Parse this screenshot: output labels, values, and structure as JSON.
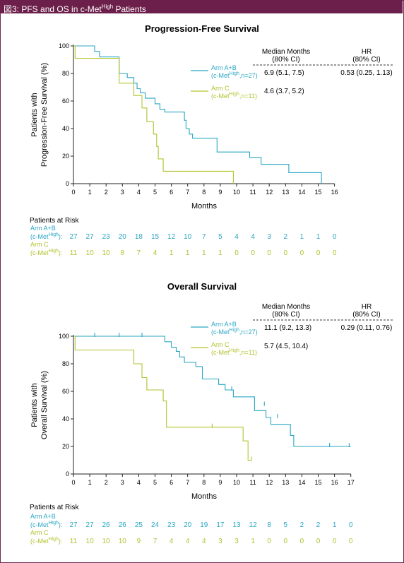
{
  "figure": {
    "label": "図3: PFS and OS in c-Met",
    "label_sup": "High",
    "label_end": " Patients"
  },
  "colors": {
    "armAB": "#2aa6c4",
    "armC": "#b3c22e",
    "banner": "#6b1f4a"
  },
  "chart_data": [
    {
      "type": "line",
      "title": "Progression-Free Survival",
      "ylabel_line1": "Patients with",
      "ylabel_line2": "Progression-Free Survival (%)",
      "xlabel": "Months",
      "xlim": [
        0,
        16
      ],
      "ylim": [
        0,
        100
      ],
      "xticks": [
        0,
        1,
        2,
        3,
        4,
        5,
        6,
        7,
        8,
        9,
        10,
        11,
        12,
        13,
        14,
        15,
        16
      ],
      "yticks": [
        0,
        20,
        40,
        60,
        80,
        100
      ],
      "table": {
        "col1_head1": "Median Months",
        "col1_head2": "(80% CI)",
        "col2_head1": "HR",
        "col2_head2": "(80% CI)",
        "rowAB_median": "6.9 (5.1, 7.5)",
        "rowC_median": "4.6 (3.7, 5.2)",
        "hr": "0.53 (0.25, 1.13)"
      },
      "series": [
        {
          "name": "Arm A+B",
          "name2": "(c-Met",
          "name2_sup": "High",
          "name2_end": ",n=27)",
          "color": "#2aa6c4",
          "steps": [
            [
              0,
              100
            ],
            [
              1.3,
              100
            ],
            [
              1.3,
              96
            ],
            [
              1.6,
              96
            ],
            [
              1.6,
              92
            ],
            [
              2.8,
              92
            ],
            [
              2.8,
              88
            ],
            [
              2.8,
              80
            ],
            [
              3.3,
              80
            ],
            [
              3.3,
              77
            ],
            [
              3.7,
              77
            ],
            [
              3.7,
              73
            ],
            [
              3.9,
              73
            ],
            [
              3.9,
              69
            ],
            [
              4.1,
              69
            ],
            [
              4.1,
              66
            ],
            [
              4.4,
              66
            ],
            [
              4.4,
              62
            ],
            [
              5.0,
              62
            ],
            [
              5.0,
              58
            ],
            [
              5.3,
              58
            ],
            [
              5.3,
              54
            ],
            [
              5.6,
              54
            ],
            [
              5.6,
              52
            ],
            [
              6.8,
              52
            ],
            [
              6.8,
              46
            ],
            [
              6.9,
              46
            ],
            [
              6.9,
              40
            ],
            [
              7.1,
              40
            ],
            [
              7.1,
              36
            ],
            [
              7.3,
              36
            ],
            [
              7.3,
              33
            ],
            [
              8.8,
              33
            ],
            [
              8.8,
              23
            ],
            [
              10.8,
              23
            ],
            [
              10.8,
              19
            ],
            [
              11.5,
              19
            ],
            [
              11.5,
              14
            ],
            [
              13.2,
              14
            ],
            [
              13.2,
              8
            ],
            [
              15.2,
              8
            ],
            [
              15.2,
              0
            ]
          ],
          "censors": []
        },
        {
          "name": "Arm C",
          "name2": "(c-Met",
          "name2_sup": "High",
          "name2_end": ",n=11)",
          "color": "#b3c22e",
          "steps": [
            [
              0,
              100
            ],
            [
              0.1,
              100
            ],
            [
              0.1,
              91
            ],
            [
              2.8,
              91
            ],
            [
              2.8,
              73
            ],
            [
              3.7,
              73
            ],
            [
              3.7,
              64
            ],
            [
              4.2,
              64
            ],
            [
              4.2,
              55
            ],
            [
              4.5,
              55
            ],
            [
              4.5,
              45
            ],
            [
              4.9,
              45
            ],
            [
              4.9,
              36
            ],
            [
              5.1,
              36
            ],
            [
              5.1,
              27
            ],
            [
              5.2,
              27
            ],
            [
              5.2,
              18
            ],
            [
              5.5,
              18
            ],
            [
              5.5,
              9
            ],
            [
              9.8,
              9
            ],
            [
              9.8,
              0
            ]
          ],
          "censors": []
        }
      ],
      "risk": {
        "heading": "Patients at Risk",
        "rows": [
          {
            "label1": "Arm A+B",
            "label2": "(c-Met",
            "label2_sup": "High",
            "label2_end": "):",
            "values": [
              "27",
              "27",
              "23",
              "20",
              "18",
              "15",
              "12",
              "10",
              "7",
              "5",
              "4",
              "4",
              "3",
              "2",
              "1",
              "1",
              "0"
            ]
          },
          {
            "label1": "Arm C",
            "label2": "(c-Met",
            "label2_sup": "High",
            "label2_end": "):",
            "values": [
              "11",
              "10",
              "10",
              "8",
              "7",
              "4",
              "1",
              "1",
              "1",
              "1",
              "0",
              "0",
              "0",
              "0",
              "0",
              "0",
              "0"
            ]
          }
        ]
      }
    },
    {
      "type": "line",
      "title": "Overall Survival",
      "ylabel_line1": "Patients with",
      "ylabel_line2": "Overall Survival (%)",
      "xlabel": "Months",
      "xlim": [
        0,
        17
      ],
      "ylim": [
        0,
        100
      ],
      "xticks": [
        0,
        1,
        2,
        3,
        4,
        5,
        6,
        7,
        8,
        9,
        10,
        11,
        12,
        13,
        14,
        15,
        16,
        17
      ],
      "yticks": [
        0,
        20,
        40,
        60,
        80,
        100
      ],
      "table": {
        "col1_head1": "Median Months",
        "col1_head2": "(80% CI)",
        "col2_head1": "HR",
        "col2_head2": "(80% CI)",
        "rowAB_median": "11.1 (9.2, 13.3)",
        "rowC_median": "5.7 (4.5, 10.4)",
        "hr": "0.29 (0.11, 0.76)"
      },
      "series": [
        {
          "name": "Arm A+B",
          "name2": "(c-Met",
          "name2_sup": "High",
          "name2_end": ",n=27)",
          "color": "#2aa6c4",
          "steps": [
            [
              0,
              100
            ],
            [
              5.6,
              100
            ],
            [
              5.6,
              96
            ],
            [
              6.0,
              96
            ],
            [
              6.0,
              92
            ],
            [
              6.3,
              92
            ],
            [
              6.3,
              89
            ],
            [
              6.5,
              89
            ],
            [
              6.5,
              85
            ],
            [
              6.8,
              85
            ],
            [
              6.8,
              81
            ],
            [
              7.5,
              81
            ],
            [
              7.5,
              78
            ],
            [
              7.9,
              78
            ],
            [
              7.9,
              69
            ],
            [
              8.9,
              69
            ],
            [
              8.9,
              65
            ],
            [
              9.3,
              65
            ],
            [
              9.3,
              61
            ],
            [
              9.8,
              61
            ],
            [
              9.8,
              56
            ],
            [
              11.1,
              56
            ],
            [
              11.1,
              46
            ],
            [
              11.8,
              46
            ],
            [
              11.8,
              41
            ],
            [
              12.1,
              41
            ],
            [
              12.1,
              36
            ],
            [
              13.3,
              36
            ],
            [
              13.3,
              28
            ],
            [
              13.5,
              28
            ],
            [
              13.5,
              20
            ],
            [
              17,
              20
            ]
          ],
          "censors": [
            [
              1.3,
              100
            ],
            [
              2.8,
              100
            ],
            [
              4.2,
              100
            ],
            [
              9.7,
              61
            ],
            [
              11.7,
              50
            ],
            [
              12.5,
              41
            ],
            [
              15.7,
              20
            ],
            [
              16.9,
              20
            ]
          ]
        },
        {
          "name": "Arm C",
          "name2": "(c-Met",
          "name2_sup": "High",
          "name2_end": ",n=11)",
          "color": "#b3c22e",
          "steps": [
            [
              0,
              100
            ],
            [
              0.1,
              100
            ],
            [
              0.1,
              90
            ],
            [
              3.7,
              90
            ],
            [
              3.7,
              80
            ],
            [
              4.2,
              80
            ],
            [
              4.2,
              70
            ],
            [
              4.5,
              70
            ],
            [
              4.5,
              61
            ],
            [
              5.5,
              61
            ],
            [
              5.5,
              53
            ],
            [
              5.7,
              53
            ],
            [
              5.7,
              34
            ],
            [
              10.4,
              34
            ],
            [
              10.4,
              24
            ],
            [
              10.7,
              24
            ],
            [
              10.7,
              10
            ],
            [
              10.9,
              10
            ]
          ],
          "censors": [
            [
              8.5,
              34
            ],
            [
              10.9,
              10
            ]
          ]
        }
      ],
      "risk": {
        "heading": "Patients at Risk",
        "rows": [
          {
            "label1": "Arm A+B",
            "label2": "(c-Met",
            "label2_sup": "High",
            "label2_end": "):",
            "values": [
              "27",
              "27",
              "26",
              "26",
              "25",
              "24",
              "23",
              "20",
              "19",
              "17",
              "13",
              "12",
              "8",
              "5",
              "2",
              "2",
              "1",
              "0"
            ]
          },
          {
            "label1": "Arm C",
            "label2": "(c-Met",
            "label2_sup": "High",
            "label2_end": "):",
            "values": [
              "11",
              "10",
              "10",
              "10",
              "9",
              "7",
              "4",
              "4",
              "4",
              "3",
              "3",
              "1",
              "0",
              "0",
              "0",
              "0",
              "0",
              "0"
            ]
          }
        ]
      }
    }
  ]
}
